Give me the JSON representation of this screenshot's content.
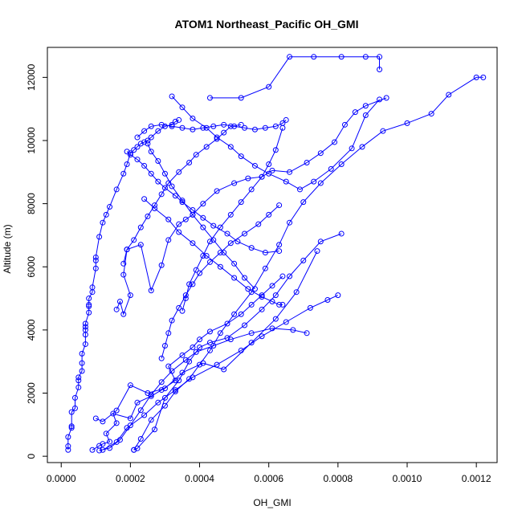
{
  "chart_data": {
    "type": "scatter",
    "title": "ATOM1 Northeast_Pacific OH_GMI",
    "xlabel": "OH_GMI",
    "ylabel": "Altitude (m)",
    "xlim": [
      -4e-05,
      0.00126
    ],
    "ylim": [
      -200,
      12950
    ],
    "xticks": [
      0.0,
      0.0002,
      0.0004,
      0.0006,
      0.0008,
      0.001,
      0.0012
    ],
    "xtick_labels": [
      "0.0000",
      "0.0002",
      "0.0004",
      "0.0006",
      "0.0008",
      "0.0010",
      "0.0012"
    ],
    "yticks": [
      0,
      2000,
      4000,
      6000,
      8000,
      10000,
      12000
    ],
    "ytick_labels": [
      "0",
      "2000",
      "4000",
      "6000",
      "8000",
      "10000",
      "12000"
    ],
    "grid": false,
    "legend": "none",
    "marker": "open-circle",
    "line_style": "solid",
    "color": "#0000ff",
    "series": [
      {
        "x": [
          2e-05,
          2e-05,
          2e-05,
          3e-05,
          3e-05,
          3e-05,
          4e-05,
          4e-05,
          5e-05,
          5e-05,
          5e-05,
          6e-05,
          6e-05,
          6e-05,
          7e-05,
          7e-05,
          7e-05,
          7e-05,
          7e-05,
          8e-05,
          8e-05,
          8e-05,
          8e-05,
          9e-05,
          9e-05,
          0.0001,
          0.0001,
          0.0001,
          0.00011,
          0.00012,
          0.00013,
          0.00014,
          0.00016,
          0.00018,
          0.00019,
          0.0002,
          0.00021,
          0.00022,
          0.00023,
          0.00024,
          0.00025,
          0.00026,
          0.00028,
          0.0003,
          0.00032,
          0.00033,
          0.00034
        ],
        "y": [
          200,
          320,
          610,
          900,
          950,
          1400,
          1520,
          1850,
          2180,
          2400,
          2500,
          2700,
          2950,
          3250,
          3550,
          3850,
          4000,
          4100,
          4200,
          4550,
          4750,
          4800,
          5000,
          5200,
          5350,
          5950,
          6200,
          6300,
          6950,
          7400,
          7650,
          7900,
          8450,
          8950,
          9250,
          9600,
          9700,
          9800,
          9900,
          9950,
          10000,
          10100,
          10300,
          10450,
          10500,
          10600,
          10650
        ]
      },
      {
        "x": [
          9e-05,
          0.00011,
          0.00012,
          0.00014,
          0.00013,
          0.00016,
          0.00015,
          0.0002,
          0.00022,
          0.00026,
          0.00029,
          0.00033,
          0.00031,
          0.00035,
          0.00038,
          0.0004,
          0.00043,
          0.00048,
          0.00052,
          0.00055,
          0.00058,
          0.00061,
          0.00064
        ],
        "y": [
          200,
          330,
          390,
          460,
          720,
          1050,
          1350,
          1200,
          1700,
          1900,
          2100,
          2400,
          2850,
          3200,
          3450,
          3700,
          3950,
          4200,
          4500,
          4800,
          5100,
          5400,
          5700
        ]
      },
      {
        "x": [
          0.00011,
          0.00014,
          0.00017,
          0.0002,
          0.00023,
          0.00026,
          0.00029,
          0.00032,
          0.00036,
          0.00039,
          0.00044,
          0.00049,
          0.00055,
          0.00061,
          0.00067,
          0.00071
        ],
        "y": [
          180,
          260,
          520,
          980,
          1460,
          1950,
          2350,
          2700,
          3050,
          3300,
          3500,
          3700,
          3900,
          4050,
          4000,
          3900
        ]
      },
      {
        "x": [
          0.00012,
          0.00016,
          0.00019,
          0.00024,
          0.00028,
          0.00033,
          0.00038,
          0.00045,
          0.00052,
          0.00058,
          0.00065,
          0.00072,
          0.00077,
          0.0008
        ],
        "y": [
          200,
          450,
          900,
          1300,
          1700,
          2100,
          2500,
          2900,
          3350,
          3800,
          4250,
          4700,
          4950,
          5100
        ]
      },
      {
        "x": [
          0.0001,
          0.00012,
          0.00016,
          0.0002,
          0.00025,
          0.0003,
          0.00035,
          0.00041,
          0.00047,
          0.00055,
          0.00062,
          0.00068,
          0.00074
        ],
        "y": [
          1200,
          1100,
          1450,
          2250,
          2000,
          2150,
          2650,
          2950,
          2750,
          3600,
          4350,
          5200,
          6500
        ]
      },
      {
        "x": [
          0.00021,
          0.00022,
          0.00027,
          0.0003,
          0.00034,
          0.00037,
          0.0004,
          0.00043,
          0.00048,
          0.00053,
          0.00058,
          0.00062,
          0.00066,
          0.0007,
          0.00075,
          0.00081
        ],
        "y": [
          200,
          250,
          850,
          1850,
          2400,
          3000,
          3450,
          3600,
          3750,
          4150,
          4650,
          5100,
          5700,
          6200,
          6800,
          7050
        ]
      },
      {
        "x": [
          0.00021,
          0.00023,
          0.00026,
          0.0003,
          0.00033,
          0.00037,
          0.0004,
          0.00043,
          0.00046,
          0.0005,
          0.00055,
          0.00059,
          0.00063,
          0.00066,
          0.0007,
          0.00075,
          0.00081,
          0.00087,
          0.00093,
          0.001,
          0.00107,
          0.00112,
          0.0012,
          0.00122
        ],
        "y": [
          200,
          550,
          1150,
          1600,
          2050,
          2450,
          2900,
          3350,
          3900,
          4500,
          5200,
          5950,
          6700,
          7400,
          8050,
          8650,
          9250,
          9800,
          10300,
          10550,
          10850,
          11450,
          12000,
          12000
        ]
      },
      {
        "x": [
          0.00016,
          0.00017,
          0.00018,
          0.0002,
          0.00018,
          0.00019,
          0.00023,
          0.00026,
          0.00029,
          0.00031,
          0.00034,
          0.00036,
          0.00038,
          0.00041,
          0.00045,
          0.0005,
          0.00054,
          0.00058,
          0.00061,
          0.00066,
          0.00071,
          0.00075,
          0.00079,
          0.00082,
          0.00085,
          0.00088,
          0.00094
        ],
        "y": [
          4650,
          4900,
          4500,
          5100,
          5750,
          6550,
          6700,
          5250,
          6050,
          6850,
          7350,
          7500,
          7650,
          8000,
          8400,
          8650,
          8800,
          8850,
          9050,
          9000,
          9300,
          9600,
          9950,
          10500,
          10900,
          11100,
          11350
        ]
      },
      {
        "x": [
          0.00018,
          0.00019,
          0.00021,
          0.00023,
          0.00025,
          0.00027,
          0.00029,
          0.00031,
          0.00034,
          0.00037,
          0.00039,
          0.00042,
          0.00045,
          0.00047,
          0.00049,
          0.00052
        ],
        "y": [
          6100,
          6550,
          6850,
          7250,
          7600,
          7950,
          8300,
          8650,
          9000,
          9300,
          9550,
          9800,
          10050,
          10250,
          10450,
          10500
        ]
      },
      {
        "x": [
          0.00019,
          0.0002,
          0.00022,
          0.00024,
          0.00026,
          0.00028,
          0.0003,
          0.00033,
          0.00035,
          0.00038,
          0.00041,
          0.00044,
          0.00048,
          0.00051,
          0.00055,
          0.00059,
          0.00063
        ],
        "y": [
          9650,
          9550,
          9400,
          9200,
          8950,
          8700,
          8500,
          8250,
          8050,
          7800,
          7550,
          7300,
          7050,
          6800,
          6600,
          6450,
          6500
        ]
      },
      {
        "x": [
          0.00032,
          0.00035,
          0.00038,
          0.00042,
          0.00045,
          0.00049,
          0.00052,
          0.00056,
          0.0006,
          0.00065,
          0.00069,
          0.00073,
          0.00078,
          0.00084,
          0.00088,
          0.00092
        ],
        "y": [
          11400,
          11050,
          10700,
          10400,
          10100,
          9800,
          9500,
          9200,
          8950,
          8700,
          8450,
          8700,
          9100,
          9750,
          10800,
          11300
        ]
      },
      {
        "x": [
          0.00043,
          0.00052,
          0.0006,
          0.00066,
          0.00073,
          0.00081,
          0.00088,
          0.00092,
          0.00092
        ],
        "y": [
          11350,
          11350,
          11700,
          12650,
          12650,
          12650,
          12650,
          12650,
          12250
        ]
      },
      {
        "x": [
          0.00024,
          0.00027,
          0.00031,
          0.00034,
          0.00038,
          0.00042,
          0.00046,
          0.0005,
          0.00054,
          0.00058,
          0.00061,
          0.00063,
          0.00064
        ],
        "y": [
          8150,
          7850,
          7500,
          7100,
          6750,
          6350,
          6000,
          5650,
          5300,
          5050,
          4900,
          4800,
          4800
        ]
      },
      {
        "x": [
          0.00025,
          0.00026,
          0.00028,
          0.0003,
          0.00032,
          0.00035,
          0.00038,
          0.00041,
          0.00044,
          0.00047,
          0.0005,
          0.00053,
          0.00056
        ],
        "y": [
          9900,
          9650,
          9350,
          8950,
          8550,
          8100,
          7650,
          7250,
          6850,
          6450,
          6100,
          5650,
          5300
        ]
      },
      {
        "x": [
          0.00035,
          0.00036,
          0.00037,
          0.00039,
          0.00041,
          0.00043,
          0.00046,
          0.00049,
          0.00052,
          0.00055,
          0.00058,
          0.0006,
          0.00062,
          0.00064
        ],
        "y": [
          4600,
          5000,
          5450,
          5900,
          6350,
          6800,
          7250,
          7650,
          8050,
          8450,
          8850,
          9250,
          9700,
          10400
        ]
      },
      {
        "x": [
          0.00029,
          0.0003,
          0.00031,
          0.00032,
          0.00034,
          0.00036,
          0.00038,
          0.0004,
          0.00043,
          0.00046,
          0.00049,
          0.00053,
          0.00057,
          0.0006,
          0.00063
        ],
        "y": [
          3100,
          3500,
          3900,
          4300,
          4700,
          5100,
          5450,
          5800,
          6150,
          6450,
          6750,
          7050,
          7350,
          7650,
          7950
        ]
      },
      {
        "x": [
          0.00022,
          0.00024,
          0.00026,
          0.00029,
          0.00032,
          0.00035,
          0.00038,
          0.00041,
          0.00044,
          0.00047,
          0.0005,
          0.00053,
          0.00056,
          0.00059,
          0.00062,
          0.00064,
          0.00065
        ],
        "y": [
          10100,
          10300,
          10450,
          10500,
          10450,
          10400,
          10350,
          10400,
          10450,
          10500,
          10450,
          10400,
          10350,
          10400,
          10450,
          10550,
          10650
        ]
      }
    ]
  }
}
